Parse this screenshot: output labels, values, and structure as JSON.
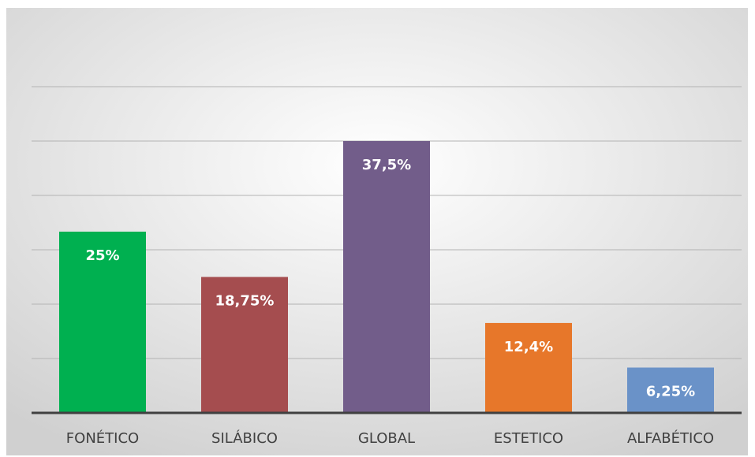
{
  "chart_data": {
    "type": "bar",
    "title": "",
    "xlabel": "",
    "ylabel": "",
    "categories": [
      "FONÉTICO",
      "SILÁBICO",
      "GLOBAL",
      "ESTETICO",
      "ALFABÉTICO"
    ],
    "values": [
      25,
      18.75,
      37.5,
      12.4,
      6.25
    ],
    "data_labels": [
      "25%",
      "18,75%",
      "37,5%",
      "12,4%",
      "6,25%"
    ],
    "colors": [
      "#00b050",
      "#a54d4f",
      "#725d8a",
      "#e7772a",
      "#6a92c8"
    ],
    "ylim": [
      0,
      45
    ],
    "grid": true,
    "legend": "none",
    "background_gradient": [
      "#ffffff",
      "#d0d0d0"
    ],
    "gridline_color": "#b3b3b3",
    "axis_color": "#404040"
  }
}
